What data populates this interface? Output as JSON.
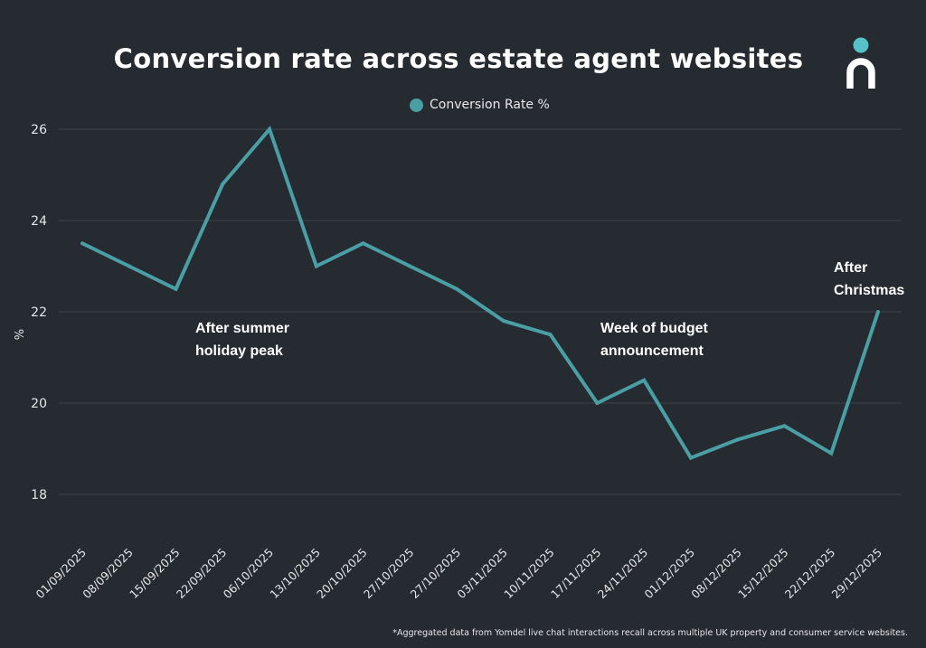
{
  "chart_data": {
    "type": "line",
    "title": "Conversion rate across estate agent websites",
    "xlabel": "",
    "ylabel": "%",
    "ylim": [
      17,
      26
    ],
    "yticks": [
      18,
      20,
      22,
      24,
      26
    ],
    "grid": true,
    "legend_position": "top",
    "categories": [
      "01/09/2025",
      "08/09/2025",
      "15/09/2025",
      "22/09/2025",
      "06/10/2025",
      "13/10/2025",
      "20/10/2025",
      "27/10/2025",
      "27/10/2025",
      "03/11/2025",
      "10/11/2025",
      "17/11/2025",
      "24/11/2025",
      "01/12/2025",
      "08/12/2025",
      "15/12/2025",
      "22/12/2025",
      "29/12/2025"
    ],
    "series": [
      {
        "name": "Conversion Rate %",
        "color": "#4a9fa5",
        "values": [
          23.5,
          23.0,
          22.5,
          24.8,
          26.0,
          23.0,
          23.5,
          23.0,
          22.5,
          21.8,
          21.5,
          20.0,
          20.5,
          18.8,
          19.2,
          19.5,
          18.9,
          22.0
        ]
      }
    ],
    "annotations": [
      {
        "lines": [
          "After summer",
          "holiday peak"
        ],
        "near": "15/09/2025"
      },
      {
        "lines": [
          "Week of budget",
          "announcement"
        ],
        "near": "24/11/2025"
      },
      {
        "lines": [
          "After",
          "Christmas"
        ],
        "near": "29/12/2025"
      }
    ]
  },
  "footnote": "*Aggregated data from Yomdel live chat interactions recall across multiple UK property and consumer service websites.",
  "colors": {
    "background": "#262a31",
    "grid": "#3e434b",
    "accent": "#57c1c9"
  },
  "logo": {
    "icon": "person-n-logo"
  }
}
